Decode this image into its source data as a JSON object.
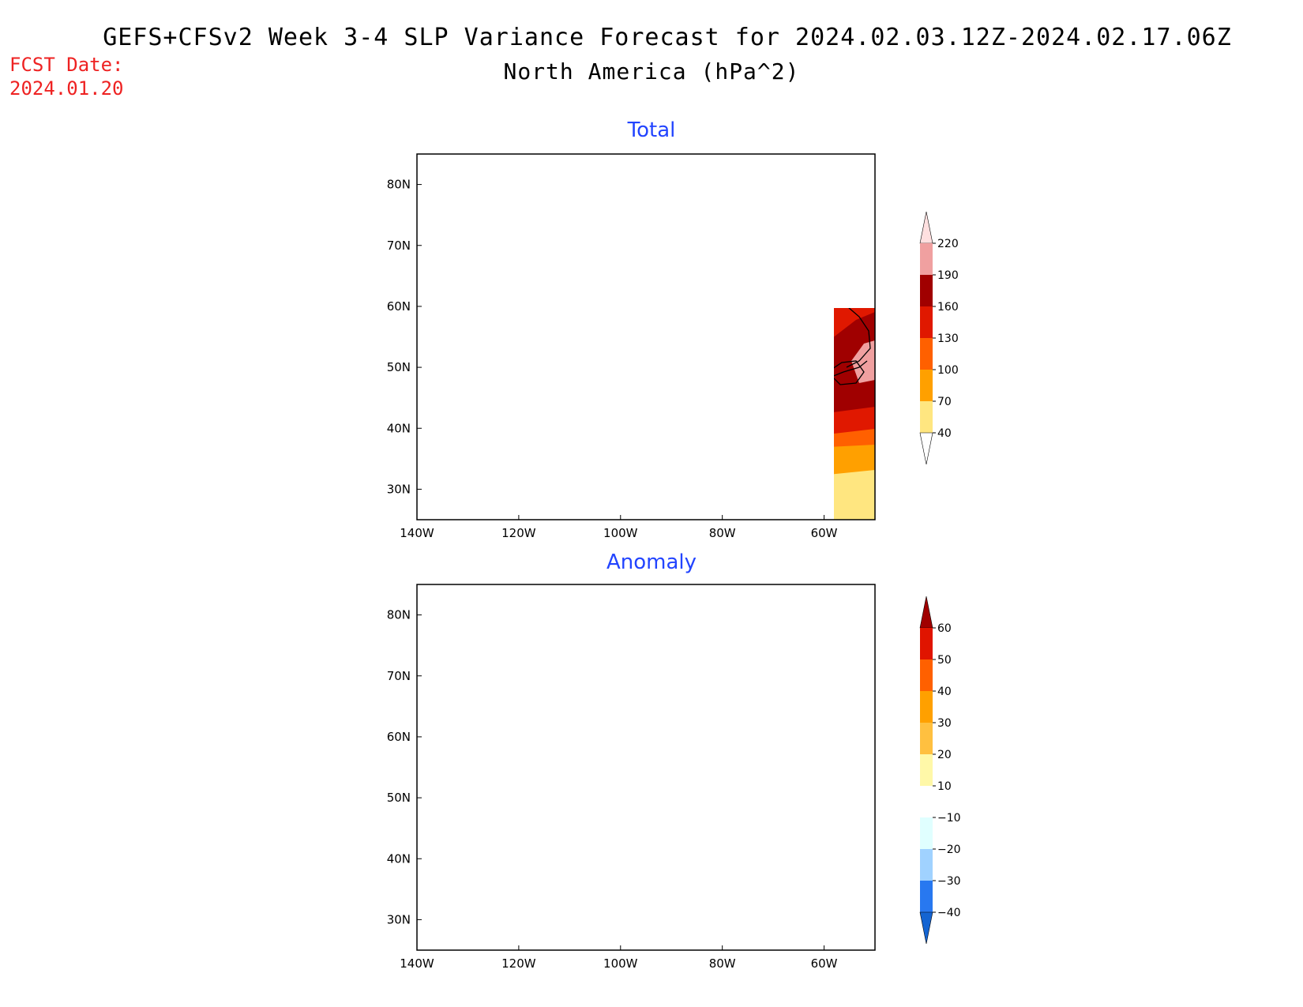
{
  "header": {
    "title_line1": "GEFS+CFSv2 Week 3-4 SLP Variance Forecast for 2024.02.03.12Z-2024.02.17.06Z",
    "title_line2": "North America (hPa^2)",
    "fcst_label": "FCST Date:",
    "fcst_date": "2024.01.20"
  },
  "panels": {
    "total": {
      "title": "Total",
      "lat_labels": [
        "80N",
        "70N",
        "60N",
        "50N",
        "40N",
        "30N"
      ],
      "lon_labels": [
        "140W",
        "120W",
        "100W",
        "80W",
        "60W"
      ],
      "colorbar": {
        "levels": [
          "40",
          "70",
          "100",
          "130",
          "160",
          "190",
          "220"
        ],
        "colors": [
          "#ffe680",
          "#ffa000",
          "#ff6000",
          "#e01800",
          "#a00000",
          "#f0a0a0",
          "#ffe0e0"
        ]
      }
    },
    "anomaly": {
      "title": "Anomaly",
      "lat_labels": [
        "80N",
        "70N",
        "60N",
        "50N",
        "40N",
        "30N"
      ],
      "lon_labels": [
        "140W",
        "120W",
        "100W",
        "80W",
        "60W"
      ],
      "colorbar": {
        "levels": [
          "60",
          "50",
          "40",
          "30",
          "20",
          "10",
          "−10",
          "−20",
          "−30",
          "−40"
        ],
        "colors": [
          "#a00000",
          "#e01400",
          "#ff6000",
          "#ffa000",
          "#ffc040",
          "#fff8a8",
          "#ffffff",
          "#e0ffff",
          "#a0d2ff",
          "#2878f0",
          "#1464d2"
        ]
      }
    }
  }
}
